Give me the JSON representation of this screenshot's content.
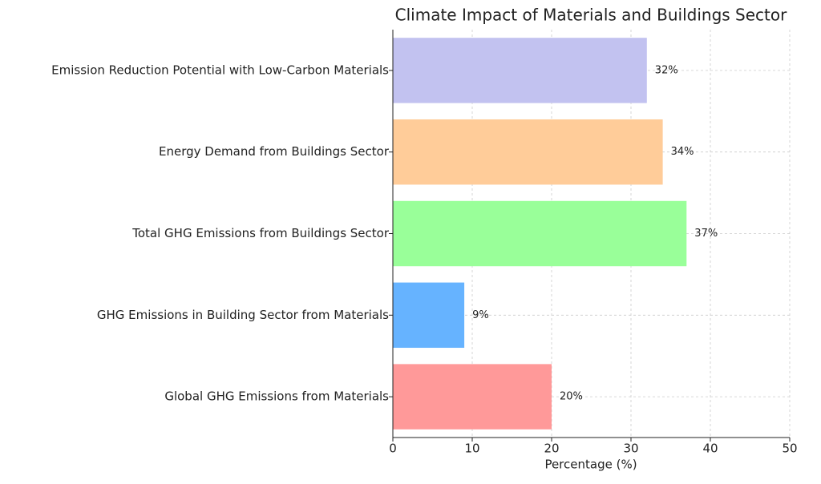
{
  "chart_data": {
    "type": "bar",
    "orientation": "horizontal",
    "title": "Climate Impact of Materials and Buildings Sector",
    "x_label": "Percentage (%)",
    "categories": [
      "Global GHG Emissions from Materials",
      "GHG Emissions in Building Sector from Materials",
      "Total GHG Emissions from Buildings Sector",
      "Energy Demand from Buildings Sector",
      "Emission Reduction Potential with Low-Carbon Materials"
    ],
    "values": [
      20,
      9,
      37,
      34,
      32
    ],
    "value_labels": [
      "20%",
      "9%",
      "37%",
      "34%",
      "32%"
    ],
    "colors": [
      "#ff9999",
      "#66b3ff",
      "#99ff99",
      "#ffcc99",
      "#c2c2f0"
    ],
    "xlim": [
      0,
      50
    ],
    "xticks": [
      0,
      10,
      20,
      30,
      40,
      50
    ],
    "grid": true
  }
}
